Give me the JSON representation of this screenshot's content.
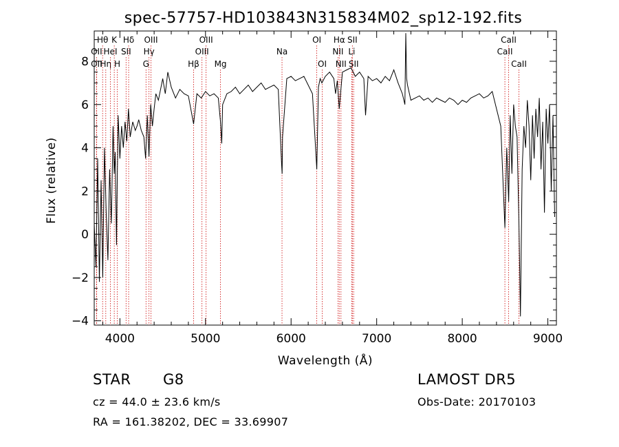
{
  "footer": {
    "class_label": "STAR",
    "subclass": "G8",
    "survey": "LAMOST DR5",
    "cz": "cz = 44.0 ± 23.6 km/s",
    "obs_date": "Obs-Date: 20170103",
    "radec": "RA = 161.38202, DEC =  33.69907"
  },
  "chart_data": {
    "type": "line",
    "title": "spec-57757-HD103843N315834M02_sp12-192.fits",
    "xlabel": "Wavelength (Å)",
    "ylabel": "Flux (relative)",
    "xlim": [
      3700,
      9100
    ],
    "ylim": [
      -4.2,
      9.4
    ],
    "xticks": [
      4000,
      5000,
      6000,
      7000,
      8000,
      9000
    ],
    "yticks": [
      -4,
      -2,
      0,
      2,
      4,
      6,
      8
    ],
    "grid": false,
    "line_color": "#000000",
    "marker_color": "#cc0000",
    "series": [
      {
        "x": [
          3700,
          3720,
          3740,
          3760,
          3780,
          3800,
          3820,
          3840,
          3860,
          3880,
          3900,
          3920,
          3934,
          3945,
          3960,
          3969,
          3980,
          4000,
          4020,
          4040,
          4060,
          4080,
          4100,
          4120,
          4150,
          4180,
          4200,
          4220,
          4250,
          4280,
          4300,
          4320,
          4340,
          4360,
          4380,
          4400,
          4420,
          4450,
          4480,
          4500,
          4530,
          4560,
          4600,
          4650,
          4700,
          4750,
          4800,
          4861,
          4900,
          4950,
          5000,
          5050,
          5100,
          5150,
          5175,
          5190,
          5200,
          5250,
          5300,
          5350,
          5400,
          5450,
          5500,
          5550,
          5600,
          5650,
          5700,
          5750,
          5800,
          5850,
          5890,
          5895,
          5900,
          5950,
          6000,
          6050,
          6100,
          6150,
          6200,
          6250,
          6300,
          6320,
          6340,
          6360,
          6400,
          6450,
          6500,
          6520,
          6540,
          6563,
          6580,
          6600,
          6650,
          6700,
          6750,
          6800,
          6850,
          6870,
          6900,
          6950,
          7000,
          7050,
          7100,
          7150,
          7200,
          7250,
          7300,
          7330,
          7340,
          7350,
          7360,
          7400,
          7450,
          7500,
          7550,
          7600,
          7650,
          7700,
          7750,
          7800,
          7850,
          7900,
          7950,
          8000,
          8050,
          8100,
          8150,
          8200,
          8250,
          8300,
          8350,
          8400,
          8450,
          8498,
          8520,
          8542,
          8560,
          8580,
          8600,
          8620,
          8640,
          8662,
          8680,
          8700,
          8720,
          8740,
          8760,
          8780,
          8800,
          8820,
          8840,
          8860,
          8880,
          8900,
          8920,
          8940,
          8960,
          8980,
          9000,
          9020,
          9040,
          9060,
          9080
        ],
        "y": [
          0.5,
          -1.5,
          3.5,
          -2.2,
          2.5,
          -2,
          4,
          1,
          -1.2,
          3,
          0.5,
          5,
          2.8,
          3.8,
          -0.5,
          2.5,
          5.5,
          3.5,
          5,
          4,
          5.2,
          4.3,
          5.8,
          4.5,
          5.2,
          4.8,
          5,
          5.3,
          4.8,
          4.5,
          3.5,
          5.5,
          3.6,
          6,
          5,
          5.8,
          6.5,
          6.2,
          6.8,
          7.2,
          6.5,
          7.5,
          6.8,
          6.3,
          6.7,
          6.5,
          6.4,
          5.1,
          6.5,
          6.3,
          6.6,
          6.4,
          6.5,
          6.3,
          5.2,
          4.2,
          6,
          6.5,
          6.6,
          6.8,
          6.5,
          6.7,
          6.9,
          6.6,
          6.8,
          7,
          6.7,
          6.8,
          6.9,
          6.7,
          3.2,
          2.8,
          4.5,
          7.2,
          7.3,
          7.1,
          7.2,
          7.3,
          6.9,
          6.5,
          3,
          6.8,
          7.2,
          7,
          7.3,
          7.5,
          7.2,
          6.5,
          7.1,
          5.8,
          6.6,
          7.5,
          7.6,
          7.7,
          7.3,
          7.5,
          7.2,
          5.5,
          7.3,
          7.1,
          7.2,
          7,
          7.3,
          7.1,
          7.6,
          7,
          6.5,
          6,
          9.3,
          7.2,
          6.9,
          6.2,
          6.3,
          6.4,
          6.2,
          6.3,
          6.1,
          6.3,
          6.2,
          6.1,
          6.3,
          6.2,
          6,
          6.2,
          6.1,
          6.3,
          6.4,
          6.5,
          6.3,
          6.4,
          6.6,
          5.8,
          5,
          0.3,
          4,
          1.5,
          5.5,
          2.8,
          6,
          5,
          4.5,
          0.5,
          -3.8,
          3,
          5,
          4,
          6.2,
          5,
          2.5,
          5.5,
          3.5,
          5.8,
          4.5,
          6.3,
          3,
          5.2,
          1,
          5.8,
          4.2,
          6,
          2,
          5.5,
          0.8
        ]
      }
    ],
    "line_markers": [
      {
        "name": "OII",
        "x": 3727,
        "row": 2
      },
      {
        "name": "Hθ",
        "x": 3798,
        "row": 1
      },
      {
        "name": "OII",
        "x": 3727,
        "row": 3
      },
      {
        "name": "Hη",
        "x": 3835,
        "row": 3
      },
      {
        "name": "HeI",
        "x": 3889,
        "row": 2
      },
      {
        "name": "K",
        "x": 3934,
        "row": 1
      },
      {
        "name": "H",
        "x": 3969,
        "row": 3
      },
      {
        "name": "SII",
        "x": 4072,
        "row": 2
      },
      {
        "name": "Hδ",
        "x": 4102,
        "row": 1
      },
      {
        "name": "Hγ",
        "x": 4340,
        "row": 2
      },
      {
        "name": "G",
        "x": 4305,
        "row": 3
      },
      {
        "name": "OIII",
        "x": 4363,
        "row": 1
      },
      {
        "name": "Hβ",
        "x": 4861,
        "row": 3
      },
      {
        "name": "OIII",
        "x": 4959,
        "row": 2
      },
      {
        "name": "OIII",
        "x": 5007,
        "row": 1
      },
      {
        "name": "Mg",
        "x": 5175,
        "row": 3
      },
      {
        "name": "Na",
        "x": 5894,
        "row": 2
      },
      {
        "name": "OI",
        "x": 6300,
        "row": 1
      },
      {
        "name": "OI",
        "x": 6364,
        "row": 3
      },
      {
        "name": "NII",
        "x": 6548,
        "row": 2
      },
      {
        "name": "Hα",
        "x": 6563,
        "row": 1
      },
      {
        "name": "NII",
        "x": 6583,
        "row": 3
      },
      {
        "name": "Li",
        "x": 6708,
        "row": 2
      },
      {
        "name": "SII",
        "x": 6716,
        "row": 1
      },
      {
        "name": "SII",
        "x": 6731,
        "row": 3
      },
      {
        "name": "CaII",
        "x": 8498,
        "row": 2
      },
      {
        "name": "CaII",
        "x": 8542,
        "row": 1
      },
      {
        "name": "CaII",
        "x": 8662,
        "row": 3
      }
    ]
  }
}
